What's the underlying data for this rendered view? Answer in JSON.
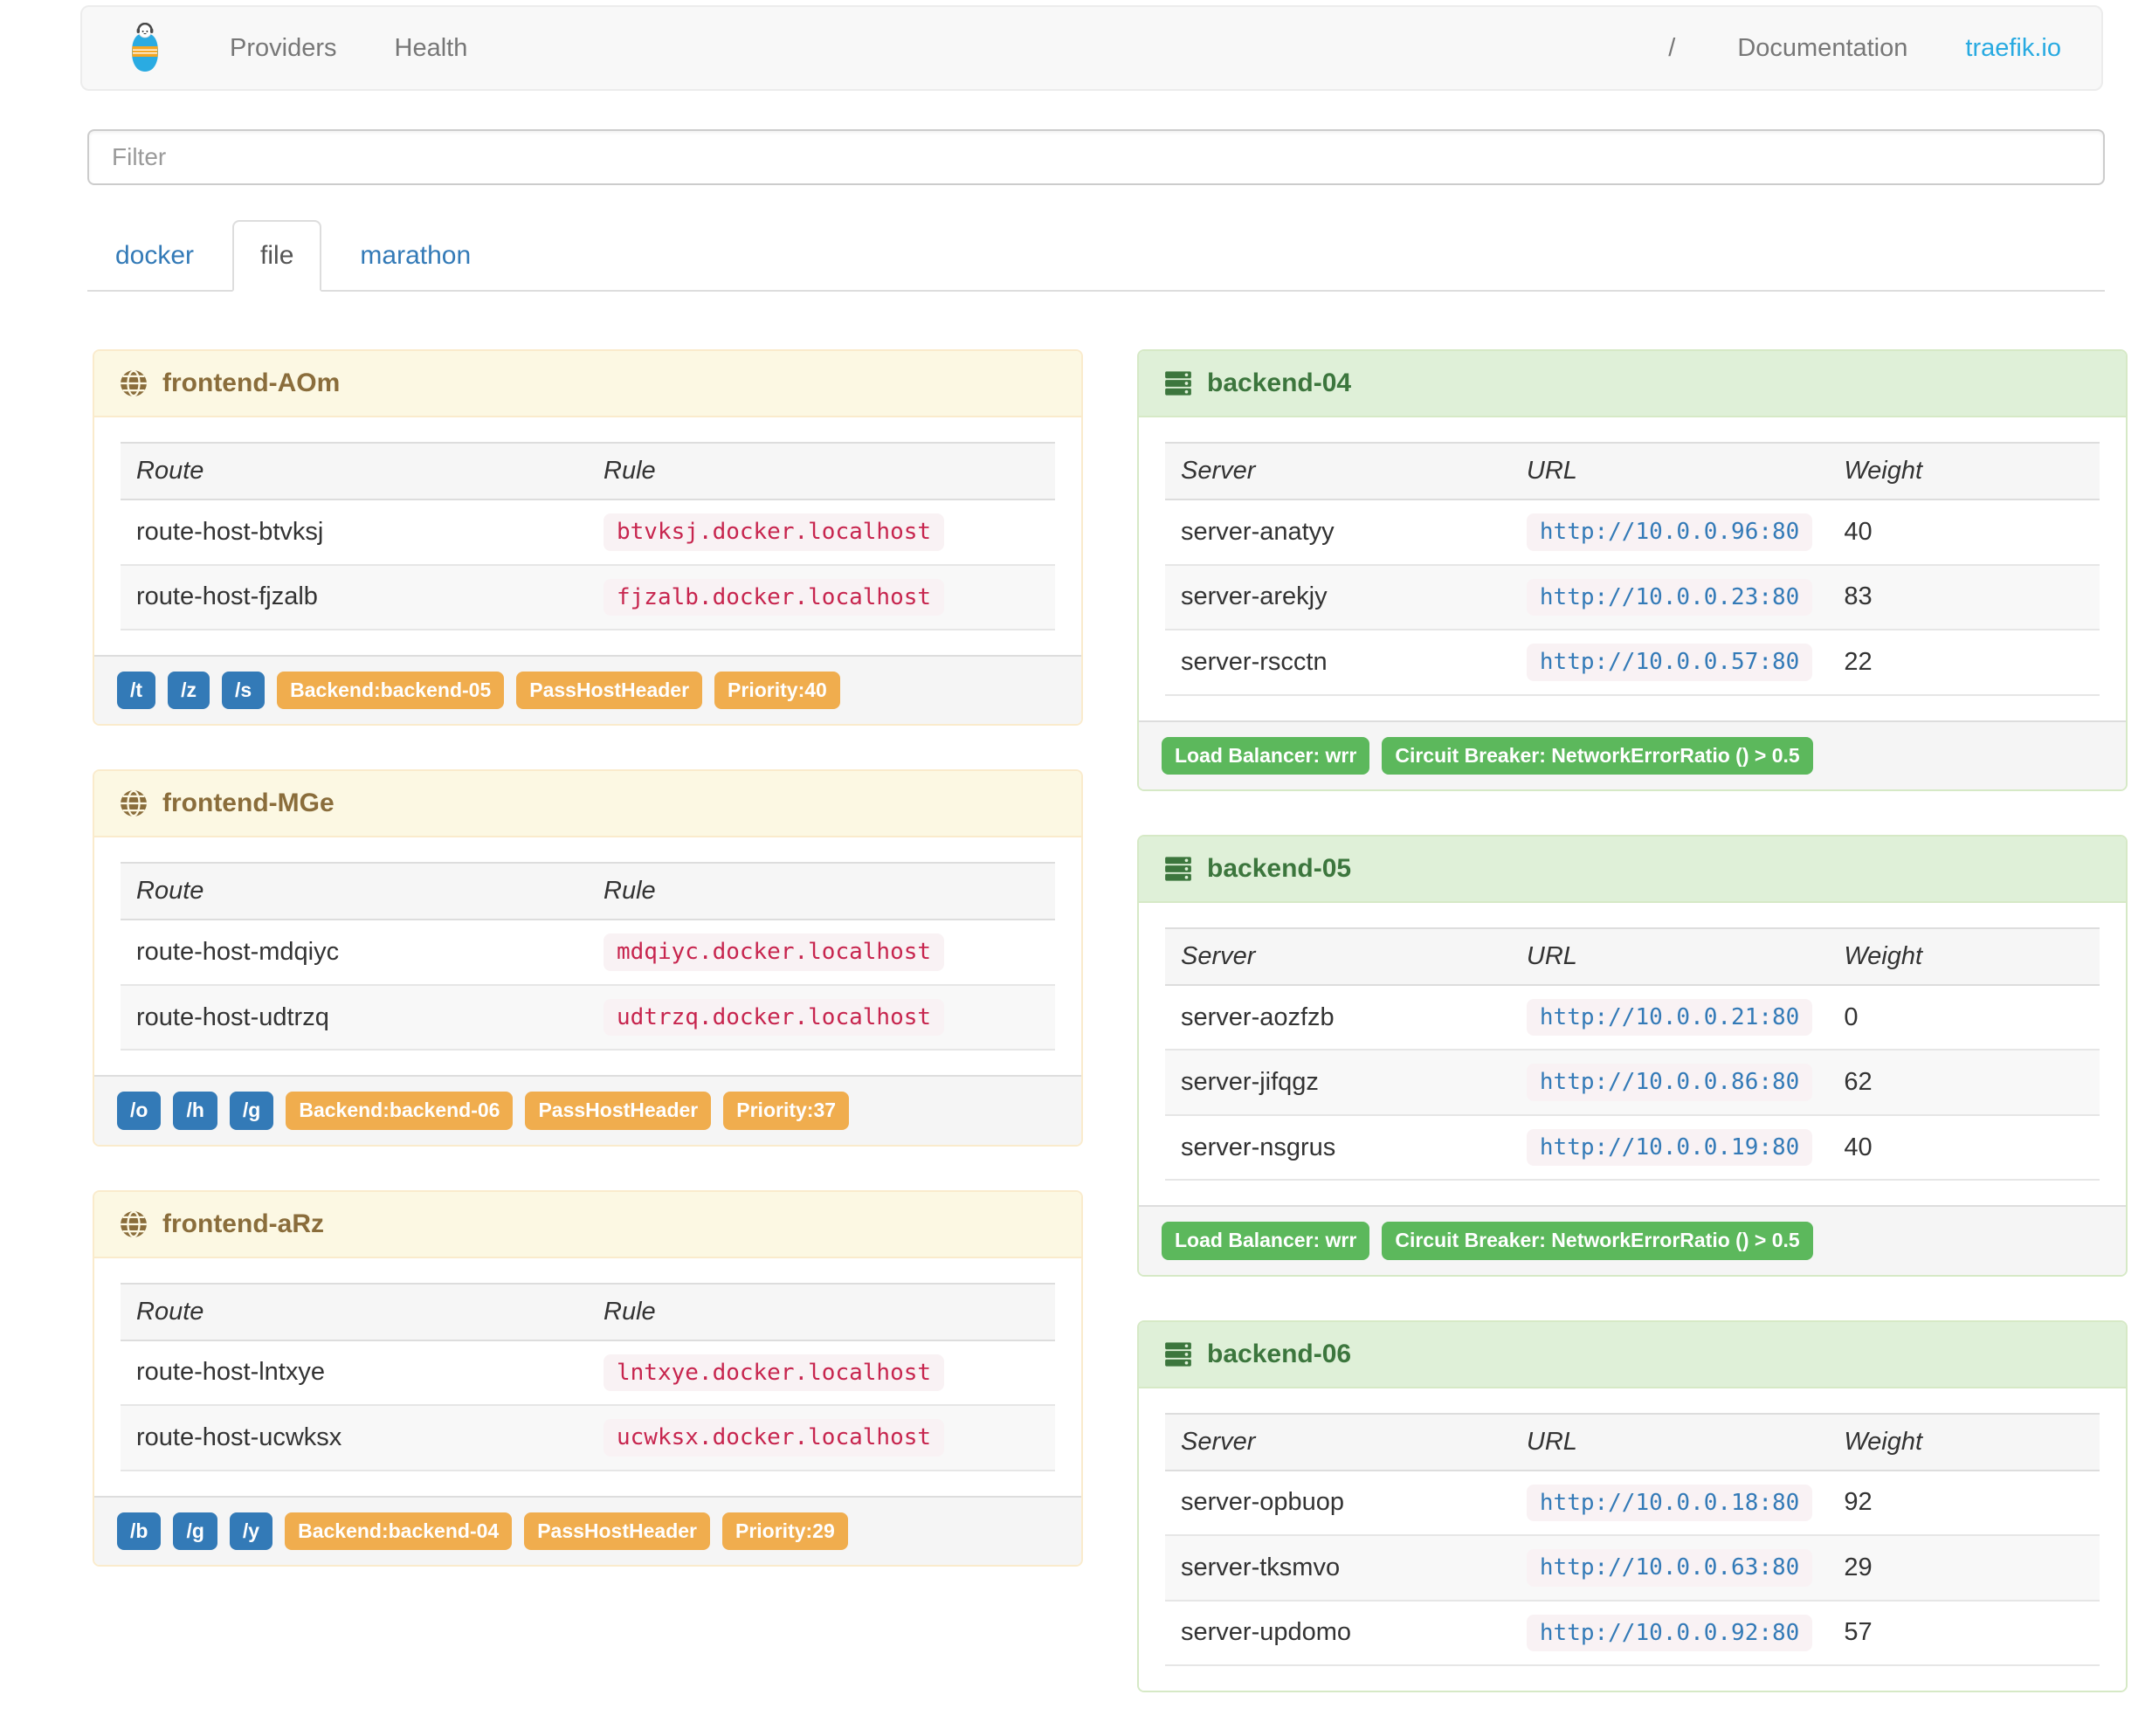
{
  "navbar": {
    "providers": "Providers",
    "health": "Health",
    "slash": "/",
    "documentation": "Documentation",
    "site": "traefik.io"
  },
  "filter": {
    "placeholder": "Filter"
  },
  "tabs": [
    {
      "label": "docker",
      "active": false
    },
    {
      "label": "file",
      "active": true
    },
    {
      "label": "marathon",
      "active": false
    }
  ],
  "table_headers": {
    "frontend": [
      "Route",
      "Rule"
    ],
    "backend": [
      "Server",
      "URL",
      "Weight"
    ]
  },
  "frontends": [
    {
      "title": "frontend-AOm",
      "routes": [
        {
          "route": "route-host-btvksj",
          "rule": "btvksj.docker.localhost"
        },
        {
          "route": "route-host-fjzalb",
          "rule": "fjzalb.docker.localhost"
        }
      ],
      "path_tags": [
        "/t",
        "/z",
        "/s"
      ],
      "config_tags": [
        "Backend:backend-05",
        "PassHostHeader",
        "Priority:40"
      ]
    },
    {
      "title": "frontend-MGe",
      "routes": [
        {
          "route": "route-host-mdqiyc",
          "rule": "mdqiyc.docker.localhost"
        },
        {
          "route": "route-host-udtrzq",
          "rule": "udtrzq.docker.localhost"
        }
      ],
      "path_tags": [
        "/o",
        "/h",
        "/g"
      ],
      "config_tags": [
        "Backend:backend-06",
        "PassHostHeader",
        "Priority:37"
      ]
    },
    {
      "title": "frontend-aRz",
      "routes": [
        {
          "route": "route-host-lntxye",
          "rule": "lntxye.docker.localhost"
        },
        {
          "route": "route-host-ucwksx",
          "rule": "ucwksx.docker.localhost"
        }
      ],
      "path_tags": [
        "/b",
        "/g",
        "/y"
      ],
      "config_tags": [
        "Backend:backend-04",
        "PassHostHeader",
        "Priority:29"
      ]
    }
  ],
  "backends": [
    {
      "title": "backend-04",
      "servers": [
        {
          "name": "server-anatyy",
          "url": "http://10.0.0.96:80",
          "weight": "40"
        },
        {
          "name": "server-arekjy",
          "url": "http://10.0.0.23:80",
          "weight": "83"
        },
        {
          "name": "server-rscctn",
          "url": "http://10.0.0.57:80",
          "weight": "22"
        }
      ],
      "tags": [
        "Load Balancer: wrr",
        "Circuit Breaker: NetworkErrorRatio () > 0.5"
      ]
    },
    {
      "title": "backend-05",
      "servers": [
        {
          "name": "server-aozfzb",
          "url": "http://10.0.0.21:80",
          "weight": "0"
        },
        {
          "name": "server-jifqgz",
          "url": "http://10.0.0.86:80",
          "weight": "62"
        },
        {
          "name": "server-nsgrus",
          "url": "http://10.0.0.19:80",
          "weight": "40"
        }
      ],
      "tags": [
        "Load Balancer: wrr",
        "Circuit Breaker: NetworkErrorRatio () > 0.5"
      ]
    },
    {
      "title": "backend-06",
      "servers": [
        {
          "name": "server-opbuop",
          "url": "http://10.0.0.18:80",
          "weight": "92"
        },
        {
          "name": "server-tksmvo",
          "url": "http://10.0.0.63:80",
          "weight": "29"
        },
        {
          "name": "server-updomo",
          "url": "http://10.0.0.92:80",
          "weight": "57"
        }
      ],
      "tags": []
    }
  ],
  "icons": {
    "brand": "traefik-logo",
    "frontend": "globe-icon",
    "backend": "server-icon"
  },
  "colors": {
    "link": "#337ab7",
    "brand_link": "#28aae1",
    "navbar_bg": "#f8f8f8",
    "label_primary": "#337ab7",
    "label_warning": "#f0ad4e",
    "label_success": "#5cb85c",
    "panel_warning_bg": "#fcf8e3",
    "panel_warning_text": "#8a6d3b",
    "panel_success_bg": "#dff0d8",
    "panel_success_text": "#3c763d",
    "code_text": "#c7254e",
    "code_bg": "#f9f2f4"
  }
}
